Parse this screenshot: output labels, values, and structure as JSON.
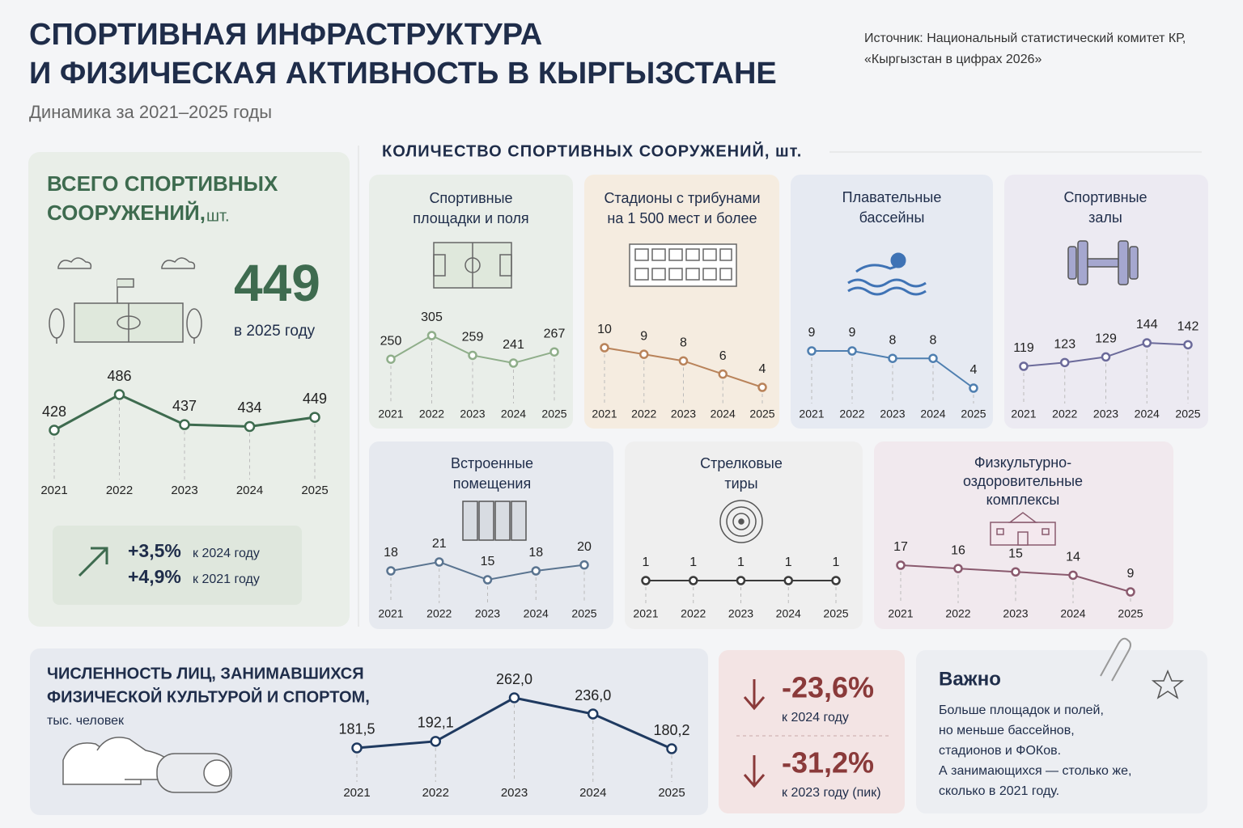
{
  "header": {
    "title": [
      "СПОРТИВНАЯ ИНФРАСТРУКТУРА",
      "И ФИЗИЧЕСКАЯ АКТИВНОСТЬ В КЫРГЫЗСТАНЕ"
    ],
    "subtitle": "Динамика за 2021–2025 годы",
    "source": [
      "Источник: Национальный статистический комитет КР,",
      "«Кыргызстан в цифрах 2026»"
    ]
  },
  "total_panel": {
    "highlight_value": 449,
    "highlight_caption": "в 2025 году",
    "changes": [
      {
        "value": "+3,5%",
        "note": "к 2024 году"
      },
      {
        "value": "+4,9%",
        "note": "к 2021 году"
      }
    ]
  },
  "section_title": "КОЛИЧЕСТВО СПОРТИВНЫХ СООРУЖЕНИЙ, шт.",
  "decline_panel": [
    {
      "value": "-23,6%",
      "note": "к 2024 году"
    },
    {
      "value": "-31,2%",
      "note": "к 2023 году (пик)"
    }
  ],
  "important": {
    "title": "Важно",
    "lines": [
      "Больше площадок и полей,",
      "но меньше бассейнов,",
      "стадионов и ФОКов.",
      "А занимающихся — столько же,",
      "сколько в 2021 году."
    ]
  },
  "chart_data": [
    {
      "type": "line",
      "title": [
        "ВСЕГО СПОРТИВНЫХ",
        "СООРУЖЕНИЙ,"
      ],
      "unit": "шт.",
      "categories": [
        "2021",
        "2022",
        "2023",
        "2024",
        "2025"
      ],
      "values": [
        428,
        486,
        437,
        434,
        449
      ],
      "color": "#3e6b4f"
    },
    {
      "type": "line",
      "title": [
        "Спортивные",
        "площадки и поля"
      ],
      "categories": [
        "2021",
        "2022",
        "2023",
        "2024",
        "2025"
      ],
      "values": [
        250,
        305,
        259,
        241,
        267
      ],
      "color": "#8fae8a"
    },
    {
      "type": "line",
      "title": [
        "Стадионы с трибунами",
        "на 1 500 мест и более"
      ],
      "categories": [
        "2021",
        "2022",
        "2023",
        "2024",
        "2025"
      ],
      "values": [
        10,
        9,
        8,
        6,
        4
      ],
      "color": "#b9835a"
    },
    {
      "type": "line",
      "title": [
        "Плавательные",
        "бассейны"
      ],
      "categories": [
        "2021",
        "2022",
        "2023",
        "2024",
        "2025"
      ],
      "values": [
        9,
        9,
        8,
        8,
        4
      ],
      "color": "#4f7fb0"
    },
    {
      "type": "line",
      "title": [
        "Спортивные",
        "залы"
      ],
      "categories": [
        "2021",
        "2022",
        "2023",
        "2024",
        "2025"
      ],
      "values": [
        119,
        123,
        129,
        144,
        142
      ],
      "color": "#6b6a9a"
    },
    {
      "type": "line",
      "title": [
        "Встроенные",
        "помещения"
      ],
      "categories": [
        "2021",
        "2022",
        "2023",
        "2024",
        "2025"
      ],
      "values": [
        18,
        21,
        15,
        18,
        20
      ],
      "color": "#5a7490"
    },
    {
      "type": "line",
      "title": [
        "Стрелковые",
        "тиры"
      ],
      "categories": [
        "2021",
        "2022",
        "2023",
        "2024",
        "2025"
      ],
      "values": [
        1,
        1,
        1,
        1,
        1
      ],
      "color": "#3a3a3a"
    },
    {
      "type": "line",
      "title": [
        "Физкультурно-",
        "оздоровительные",
        "комплексы"
      ],
      "categories": [
        "2021",
        "2022",
        "2023",
        "2024",
        "2025"
      ],
      "values": [
        17,
        16,
        15,
        14,
        9
      ],
      "color": "#8a5a6e"
    },
    {
      "type": "line",
      "title": [
        "ЧИСЛЕННОСТЬ ЛИЦ, ЗАНИМАВШИХСЯ",
        "ФИЗИЧЕСКОЙ КУЛЬТУРОЙ И СПОРТОМ,"
      ],
      "unit": "тыс. человек",
      "categories": [
        "2021",
        "2022",
        "2023",
        "2024",
        "2025"
      ],
      "values": [
        181.5,
        192.1,
        262.0,
        236.0,
        180.2
      ],
      "value_labels": [
        "181,5",
        "192,1",
        "262,0",
        "236,0",
        "180,2"
      ],
      "color": "#1f3a60"
    }
  ]
}
